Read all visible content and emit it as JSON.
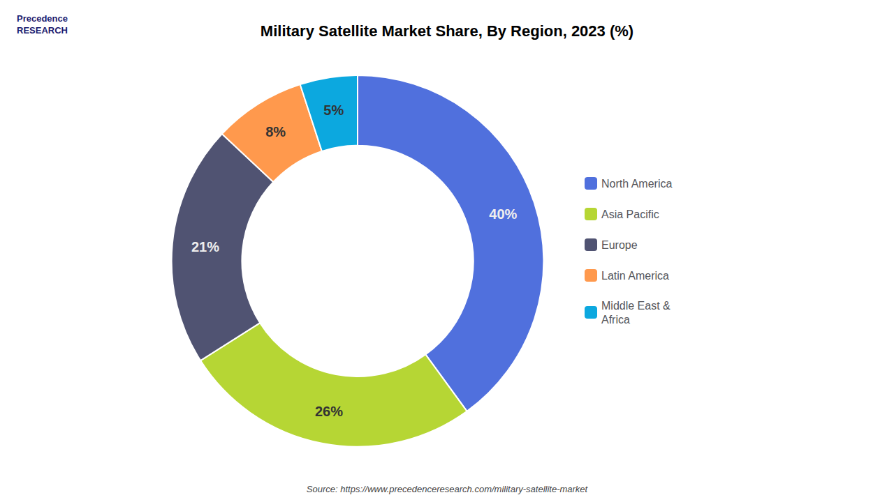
{
  "chart_data": {
    "type": "pie",
    "title": "Military Satellite Market Share, By Region, 2023 (%)",
    "categories": [
      "North America",
      "Asia Pacific",
      "Europe",
      "Latin America",
      "Middle East &\nAfrica"
    ],
    "values": [
      40,
      26,
      21,
      8,
      5
    ],
    "value_labels": [
      "40%",
      "26%",
      "21%",
      "8%",
      "5%"
    ],
    "data_labels": true,
    "legend": "right",
    "annotations": [
      "Source: https://www.precedenceresearch.com/military-satellite-market",
      "Precedence\nRESEARCH"
    ]
  }
}
